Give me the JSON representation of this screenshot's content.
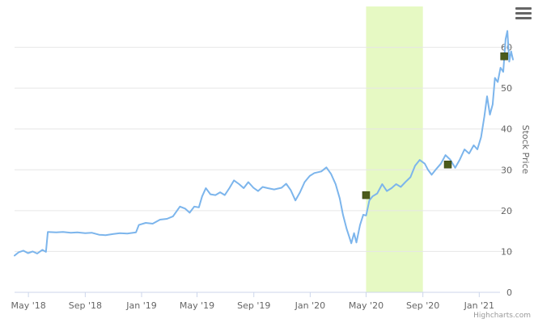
{
  "chart_data": {
    "type": "line",
    "title": "",
    "xlabel": "",
    "ylabel": "Stock Price",
    "x_range": [
      "2018-04-01",
      "2021-03-15"
    ],
    "ylim": [
      0,
      70
    ],
    "y_ticks": [
      0,
      10,
      20,
      30,
      40,
      50,
      60
    ],
    "x_ticks": [
      {
        "label": "May '18",
        "date": "2018-05-01"
      },
      {
        "label": "Sep '18",
        "date": "2018-09-01"
      },
      {
        "label": "Jan '19",
        "date": "2019-01-01"
      },
      {
        "label": "May '19",
        "date": "2019-05-01"
      },
      {
        "label": "Sep '19",
        "date": "2019-09-01"
      },
      {
        "label": "Jan '20",
        "date": "2020-01-01"
      },
      {
        "label": "May '20",
        "date": "2020-05-01"
      },
      {
        "label": "Sep '20",
        "date": "2020-09-01"
      },
      {
        "label": "Jan '21",
        "date": "2021-01-01"
      }
    ],
    "grid": "horizontal",
    "highlight_band": {
      "from": "2020-05-01",
      "to": "2020-09-01",
      "color": "#e6f9c3"
    },
    "series": [
      {
        "color": "#7cb5ec",
        "points": [
          [
            "2018-04-01",
            9.0
          ],
          [
            "2018-04-10",
            9.8
          ],
          [
            "2018-04-20",
            10.2
          ],
          [
            "2018-04-30",
            9.6
          ],
          [
            "2018-05-10",
            10.0
          ],
          [
            "2018-05-20",
            9.5
          ],
          [
            "2018-05-31",
            10.4
          ],
          [
            "2018-06-08",
            9.9
          ],
          [
            "2018-06-12",
            14.8
          ],
          [
            "2018-06-30",
            14.7
          ],
          [
            "2018-07-15",
            14.8
          ],
          [
            "2018-08-01",
            14.6
          ],
          [
            "2018-08-15",
            14.7
          ],
          [
            "2018-09-01",
            14.5
          ],
          [
            "2018-09-15",
            14.6
          ],
          [
            "2018-10-01",
            14.1
          ],
          [
            "2018-10-15",
            14.0
          ],
          [
            "2018-11-01",
            14.3
          ],
          [
            "2018-11-15",
            14.5
          ],
          [
            "2018-12-01",
            14.4
          ],
          [
            "2018-12-20",
            14.7
          ],
          [
            "2018-12-26",
            16.5
          ],
          [
            "2019-01-10",
            17.0
          ],
          [
            "2019-01-25",
            16.8
          ],
          [
            "2019-02-10",
            17.8
          ],
          [
            "2019-02-25",
            18.0
          ],
          [
            "2019-03-10",
            18.6
          ],
          [
            "2019-03-25",
            21.0
          ],
          [
            "2019-04-05",
            20.5
          ],
          [
            "2019-04-15",
            19.5
          ],
          [
            "2019-04-25",
            21.0
          ],
          [
            "2019-05-05",
            20.8
          ],
          [
            "2019-05-12",
            23.5
          ],
          [
            "2019-05-20",
            25.5
          ],
          [
            "2019-05-30",
            24.0
          ],
          [
            "2019-06-10",
            23.8
          ],
          [
            "2019-06-20",
            24.5
          ],
          [
            "2019-06-30",
            23.8
          ],
          [
            "2019-07-10",
            25.5
          ],
          [
            "2019-07-20",
            27.4
          ],
          [
            "2019-07-31",
            26.5
          ],
          [
            "2019-08-10",
            25.5
          ],
          [
            "2019-08-20",
            27.0
          ],
          [
            "2019-08-31",
            25.6
          ],
          [
            "2019-09-10",
            24.8
          ],
          [
            "2019-09-20",
            25.8
          ],
          [
            "2019-10-01",
            25.5
          ],
          [
            "2019-10-15",
            25.2
          ],
          [
            "2019-10-31",
            25.6
          ],
          [
            "2019-11-10",
            26.6
          ],
          [
            "2019-11-20",
            25.0
          ],
          [
            "2019-11-30",
            22.5
          ],
          [
            "2019-12-10",
            24.5
          ],
          [
            "2019-12-20",
            27.0
          ],
          [
            "2019-12-31",
            28.5
          ],
          [
            "2020-01-10",
            29.2
          ],
          [
            "2020-01-25",
            29.6
          ],
          [
            "2020-02-05",
            30.6
          ],
          [
            "2020-02-15",
            29.0
          ],
          [
            "2020-02-25",
            26.5
          ],
          [
            "2020-03-05",
            23.0
          ],
          [
            "2020-03-12",
            19.0
          ],
          [
            "2020-03-20",
            15.5
          ],
          [
            "2020-03-25",
            13.8
          ],
          [
            "2020-03-30",
            12.0
          ],
          [
            "2020-04-05",
            14.5
          ],
          [
            "2020-04-10",
            12.2
          ],
          [
            "2020-04-18",
            16.5
          ],
          [
            "2020-04-25",
            19.0
          ],
          [
            "2020-05-01",
            18.8
          ],
          [
            "2020-05-08",
            22.5
          ],
          [
            "2020-05-15",
            23.5
          ],
          [
            "2020-05-25",
            24.2
          ],
          [
            "2020-06-05",
            26.5
          ],
          [
            "2020-06-15",
            24.8
          ],
          [
            "2020-06-25",
            25.5
          ],
          [
            "2020-07-05",
            26.5
          ],
          [
            "2020-07-15",
            25.8
          ],
          [
            "2020-07-25",
            27.0
          ],
          [
            "2020-08-05",
            28.2
          ],
          [
            "2020-08-15",
            31.0
          ],
          [
            "2020-08-25",
            32.4
          ],
          [
            "2020-09-05",
            31.5
          ],
          [
            "2020-09-12",
            30.0
          ],
          [
            "2020-09-20",
            28.8
          ],
          [
            "2020-09-30",
            30.2
          ],
          [
            "2020-10-10",
            31.5
          ],
          [
            "2020-10-20",
            33.6
          ],
          [
            "2020-10-30",
            32.5
          ],
          [
            "2020-11-10",
            30.5
          ],
          [
            "2020-11-20",
            32.5
          ],
          [
            "2020-11-30",
            35.0
          ],
          [
            "2020-12-10",
            34.0
          ],
          [
            "2020-12-20",
            36.0
          ],
          [
            "2020-12-28",
            35.0
          ],
          [
            "2021-01-05",
            38.0
          ],
          [
            "2021-01-12",
            43.0
          ],
          [
            "2021-01-18",
            48.0
          ],
          [
            "2021-01-24",
            43.5
          ],
          [
            "2021-01-30",
            46.0
          ],
          [
            "2021-02-04",
            52.5
          ],
          [
            "2021-02-10",
            51.5
          ],
          [
            "2021-02-16",
            55.0
          ],
          [
            "2021-02-22",
            54.0
          ],
          [
            "2021-02-27",
            62.0
          ],
          [
            "2021-03-03",
            64.0
          ],
          [
            "2021-03-07",
            56.5
          ],
          [
            "2021-03-11",
            59.0
          ],
          [
            "2021-03-15",
            57.0
          ]
        ]
      }
    ],
    "markers": [
      {
        "date": "2020-05-01",
        "value": 23.8,
        "color": "#4b5b1b"
      },
      {
        "date": "2020-10-25",
        "value": 31.3,
        "color": "#4b5b1b"
      },
      {
        "date": "2021-02-24",
        "value": 57.8,
        "color": "#4b5b1b"
      }
    ]
  },
  "credits": "Highcharts.com",
  "menu": {
    "icon": "hamburger-icon"
  }
}
